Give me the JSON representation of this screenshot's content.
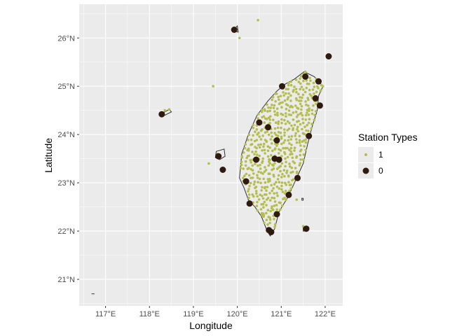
{
  "chart_data": {
    "type": "scatter",
    "title": "",
    "xlabel": "Longitude",
    "ylabel": "Latitude",
    "xlim": [
      116.4,
      122.4
    ],
    "ylim": [
      20.45,
      26.7
    ],
    "x_ticks": [
      117,
      118,
      119,
      120,
      121,
      122
    ],
    "x_tick_labels": [
      "117°E",
      "118°E",
      "119°E",
      "120°E",
      "121°E",
      "122°E"
    ],
    "y_ticks": [
      21,
      22,
      23,
      24,
      25,
      26
    ],
    "y_tick_labels": [
      "21°N",
      "22°N",
      "23°N",
      "24°N",
      "25°N",
      "26°N"
    ],
    "grid": true,
    "legend": {
      "title": "Station Types",
      "position": "right",
      "entries": [
        {
          "label": "1",
          "color": "#b5be4d"
        },
        {
          "label": "0",
          "color": "#2e1a0e"
        }
      ]
    },
    "colors": {
      "panel": "#ebebeb",
      "grid": "#ffffff",
      "coastline": "#333333",
      "land": "#ebebeb"
    },
    "series": [
      {
        "name": "1",
        "color": "#b5be4d",
        "points": [
          [
            120.05,
            26.0
          ],
          [
            120.47,
            26.37
          ],
          [
            119.45,
            25.0
          ],
          [
            118.35,
            24.5
          ],
          [
            118.45,
            24.52
          ],
          [
            119.35,
            23.4
          ],
          [
            119.55,
            23.6
          ],
          [
            119.6,
            23.55
          ],
          [
            120.6,
            22.3
          ],
          [
            121.35,
            22.65
          ],
          [
            121.5,
            22.1
          ],
          [
            121.95,
            25.0
          ],
          [
            121.8,
            25.15
          ],
          [
            121.55,
            25.3
          ]
        ]
      },
      {
        "name": "0",
        "color": "#2e1a0e",
        "points": [
          [
            119.93,
            26.17
          ],
          [
            122.08,
            25.62
          ],
          [
            121.02,
            25.0
          ],
          [
            121.55,
            25.2
          ],
          [
            121.85,
            25.1
          ],
          [
            121.78,
            24.75
          ],
          [
            121.88,
            24.6
          ],
          [
            121.63,
            23.97
          ],
          [
            118.28,
            24.42
          ],
          [
            119.57,
            23.55
          ],
          [
            119.67,
            23.27
          ],
          [
            120.5,
            24.25
          ],
          [
            120.7,
            24.15
          ],
          [
            120.9,
            23.88
          ],
          [
            120.43,
            23.48
          ],
          [
            120.85,
            23.5
          ],
          [
            120.95,
            23.48
          ],
          [
            121.37,
            23.1
          ],
          [
            120.2,
            23.03
          ],
          [
            121.17,
            22.75
          ],
          [
            120.28,
            22.57
          ],
          [
            120.9,
            22.35
          ],
          [
            121.57,
            22.05
          ],
          [
            120.72,
            22.02
          ],
          [
            120.77,
            21.98
          ]
        ]
      }
    ],
    "land_features": [
      {
        "name": "Taiwan",
        "outline": [
          [
            121.52,
            25.3
          ],
          [
            121.75,
            25.2
          ],
          [
            121.95,
            25.0
          ],
          [
            121.85,
            24.8
          ],
          [
            121.82,
            24.5
          ],
          [
            121.7,
            24.15
          ],
          [
            121.6,
            23.8
          ],
          [
            121.5,
            23.4
          ],
          [
            121.3,
            23.0
          ],
          [
            121.15,
            22.7
          ],
          [
            120.95,
            22.4
          ],
          [
            120.85,
            22.05
          ],
          [
            120.75,
            21.9
          ],
          [
            120.68,
            22.0
          ],
          [
            120.55,
            22.3
          ],
          [
            120.4,
            22.5
          ],
          [
            120.25,
            22.65
          ],
          [
            120.15,
            22.9
          ],
          [
            120.05,
            23.1
          ],
          [
            120.1,
            23.6
          ],
          [
            120.25,
            24.0
          ],
          [
            120.45,
            24.4
          ],
          [
            120.7,
            24.7
          ],
          [
            120.9,
            24.9
          ],
          [
            121.1,
            25.05
          ],
          [
            121.3,
            25.15
          ]
        ]
      },
      {
        "name": "Penghu",
        "outline": [
          [
            119.52,
            23.65
          ],
          [
            119.7,
            23.7
          ],
          [
            119.72,
            23.55
          ],
          [
            119.6,
            23.48
          ],
          [
            119.5,
            23.52
          ]
        ]
      },
      {
        "name": "Kinmen",
        "outline": [
          [
            118.25,
            24.42
          ],
          [
            118.45,
            24.52
          ],
          [
            118.5,
            24.47
          ],
          [
            118.35,
            24.4
          ]
        ]
      },
      {
        "name": "Matsu",
        "outline": [
          [
            119.9,
            26.15
          ],
          [
            120.0,
            26.25
          ],
          [
            120.02,
            26.12
          ]
        ]
      },
      {
        "name": "Green Island",
        "outline": [
          [
            121.47,
            22.68
          ],
          [
            121.5,
            22.68
          ],
          [
            121.5,
            22.64
          ],
          [
            121.47,
            22.64
          ]
        ]
      },
      {
        "name": "Orchid Island",
        "outline": [
          [
            121.5,
            22.08
          ],
          [
            121.58,
            22.08
          ],
          [
            121.58,
            22.0
          ],
          [
            121.5,
            22.0
          ]
        ]
      }
    ],
    "green_grid": {
      "description_bounds": "inside Taiwan outline",
      "lon_range": [
        120.05,
        121.95
      ],
      "lat_range": [
        21.9,
        25.3
      ],
      "step": 0.08
    }
  }
}
